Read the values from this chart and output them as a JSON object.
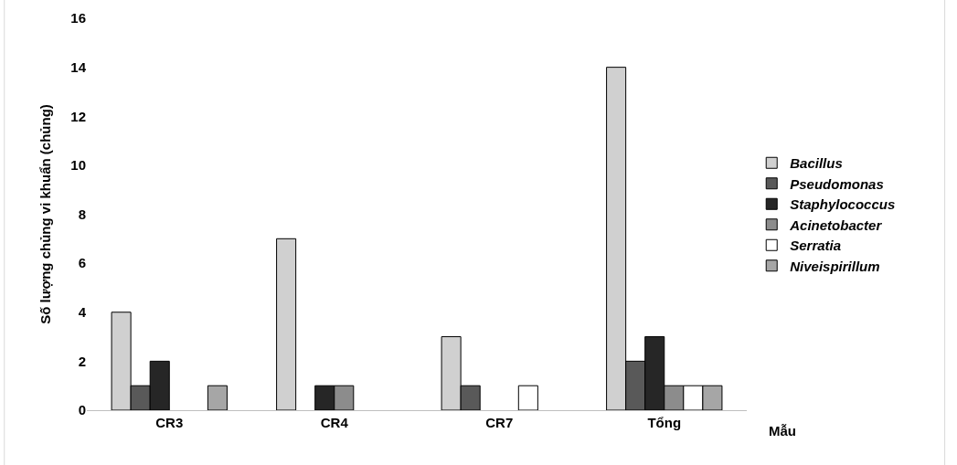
{
  "chart_data": {
    "type": "bar",
    "ylabel": "Số lượng chủng vi khuẩn (chủng)",
    "xlabel": "Mẫu",
    "categories": [
      "CR3",
      "CR4",
      "CR7",
      "Tổng"
    ],
    "series": [
      {
        "name": "Bacillus",
        "color": "#d0d0d0",
        "values": [
          4,
          7,
          3,
          14
        ]
      },
      {
        "name": "Pseudomonas",
        "color": "#595959",
        "values": [
          1,
          0,
          1,
          2
        ]
      },
      {
        "name": "Staphylococcus",
        "color": "#262626",
        "values": [
          2,
          1,
          0,
          3
        ]
      },
      {
        "name": "Acinetobacter",
        "color": "#8c8c8c",
        "values": [
          0,
          1,
          0,
          1
        ]
      },
      {
        "name": "Serratia",
        "color": "#ffffff",
        "values": [
          0,
          0,
          1,
          1
        ]
      },
      {
        "name": "Niveispirillum",
        "color": "#a6a6a6",
        "values": [
          1,
          0,
          0,
          1
        ]
      }
    ],
    "ylim": [
      0,
      16
    ],
    "yticks": [
      0,
      2,
      4,
      6,
      8,
      10,
      12,
      14,
      16
    ],
    "grid": false,
    "legend": "right"
  }
}
